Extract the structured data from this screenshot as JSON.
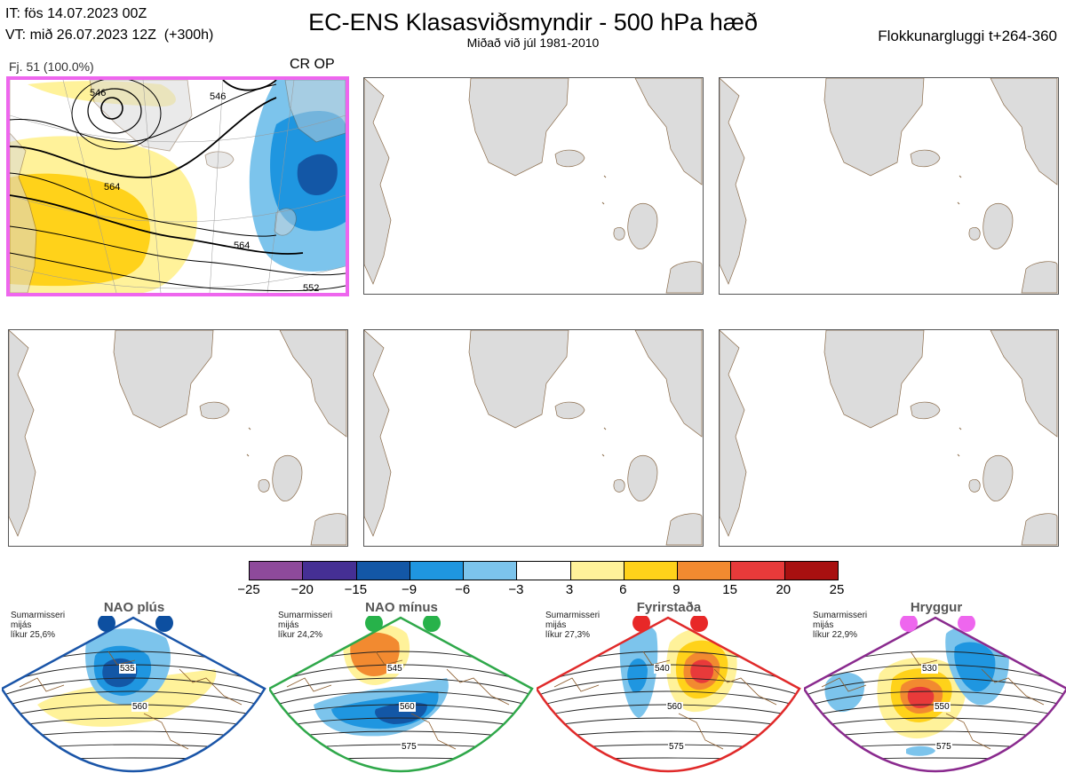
{
  "header": {
    "it_line": "IT: fös 14.07.2023 00Z",
    "vt_line": "VT: mið 26.07.2023 12Z  (+300h)",
    "title": "EC-ENS Klasasviðsmyndir - 500 hPa hæð",
    "subtitle": "Miðað við júl 1981-2010",
    "window": "Flokkunargluggi t+264-360"
  },
  "panel1": {
    "info": "Fj. 51 (100.0%)",
    "label": "CR OP",
    "contours": [
      "546",
      "564",
      "564",
      "546",
      "552"
    ]
  },
  "colorbar": {
    "colors": [
      "#8e4a9b",
      "#452f94",
      "#1357a6",
      "#1f96e0",
      "#7cc4ec",
      "#ffffff",
      "#fff29a",
      "#ffd21a",
      "#f28a30",
      "#e83a3a",
      "#a81010"
    ],
    "ticks": [
      "−25",
      "−20",
      "−15",
      "−9",
      "−6",
      "−3",
      "3",
      "6",
      "9",
      "15",
      "20",
      "25"
    ]
  },
  "regimes": [
    {
      "name": "NAO plús",
      "line1": "Sumarmisseri",
      "line2": "mijás",
      "prob": "líkur 25,6%",
      "color": "#1a55a8",
      "dot": "#0d4fa0",
      "c1": "535",
      "c2": "560"
    },
    {
      "name": "NAO mínus",
      "line1": "Sumarmisseri",
      "line2": "mijás",
      "prob": "líkur 24,2%",
      "color": "#2fa84a",
      "dot": "#27b24a",
      "c1": "545",
      "c2": "560",
      "c3": "575"
    },
    {
      "name": "Fyrirstaða",
      "line1": "Sumarmisseri",
      "line2": "mijás",
      "prob": "líkur 27,3%",
      "color": "#e02a2a",
      "dot": "#e82828",
      "c1": "540",
      "c2": "560",
      "c3": "575"
    },
    {
      "name": "Hryggur",
      "line1": "Sumarmisseri",
      "line2": "mijás",
      "prob": "líkur 22,9%",
      "color": "#8a2a8e",
      "dot": "#ee66ee",
      "c1": "530",
      "c2": "550",
      "c3": "575"
    }
  ]
}
